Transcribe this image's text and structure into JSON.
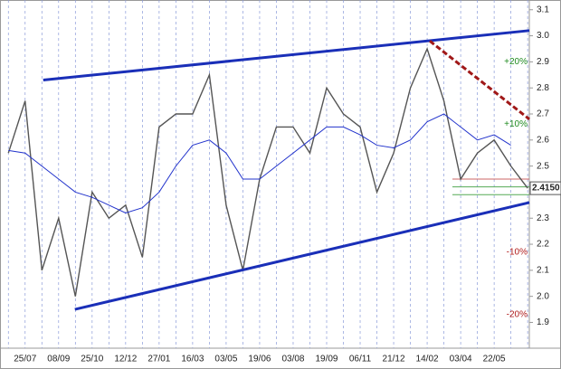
{
  "chart_data": {
    "type": "line",
    "categories": [
      null,
      "25/07",
      null,
      "08/09",
      null,
      "25/10",
      null,
      "12/12",
      null,
      "27/01",
      null,
      "16/03",
      null,
      "03/05",
      null,
      "19/06",
      null,
      "03/08",
      null,
      "19/09",
      null,
      "06/11",
      null,
      "21/12",
      null,
      "14/02",
      null,
      "03/04",
      null,
      "22/05",
      null,
      null
    ],
    "series": [
      {
        "color": "#555555",
        "values": [
          2.55,
          2.75,
          2.1,
          2.3,
          2.0,
          2.4,
          2.3,
          2.35,
          2.15,
          2.65,
          2.7,
          2.7,
          2.85,
          2.35,
          2.1,
          2.45,
          2.65,
          2.65,
          2.55,
          2.8,
          2.7,
          2.65,
          2.4,
          2.55,
          2.8,
          2.95,
          2.75,
          2.45,
          2.55,
          2.6,
          2.5,
          2.415
        ]
      },
      {
        "color": "#2233cc",
        "values": [
          2.56,
          2.55,
          2.5,
          2.45,
          2.4,
          2.38,
          2.35,
          2.32,
          2.34,
          2.4,
          2.5,
          2.58,
          2.6,
          2.55,
          2.45,
          2.45,
          2.5,
          2.55,
          2.6,
          2.65,
          2.65,
          2.62,
          2.58,
          2.57,
          2.6,
          2.67,
          2.7,
          2.65,
          2.6,
          2.62,
          2.58,
          null
        ]
      }
    ],
    "ylim": [
      1.86,
      3.12
    ],
    "yticks": [
      {
        "value": 1.9,
        "label": "1.9"
      },
      {
        "value": 2.0,
        "label": "2.0"
      },
      {
        "value": 2.1,
        "label": "2.1"
      },
      {
        "value": 2.2,
        "label": "2.2"
      },
      {
        "value": 2.3,
        "label": "2.3"
      },
      {
        "value": 2.4,
        "label": "2.4"
      },
      {
        "value": 2.5,
        "label": "2.5"
      },
      {
        "value": 2.6,
        "label": "2.6"
      },
      {
        "value": 2.7,
        "label": "2.7"
      },
      {
        "value": 2.8,
        "label": "2.8"
      },
      {
        "value": 2.9,
        "label": "2.9"
      },
      {
        "value": 3.0,
        "label": "3.0"
      },
      {
        "value": 3.1,
        "label": "3.1"
      }
    ],
    "trend_lines": [
      {
        "color": "#1a2fb8",
        "x": [
          2.08,
          31.1
        ],
        "y": [
          2.83,
          3.02
        ]
      },
      {
        "color": "#1a2fb8",
        "x": [
          3.97,
          31.1
        ],
        "y": [
          1.95,
          2.36
        ]
      },
      {
        "color": "#a01818",
        "x": [
          25.16,
          31.1
        ],
        "y": [
          2.98,
          2.68
        ],
        "dashed": true
      }
    ],
    "levels": [
      {
        "value": 2.45,
        "color": "#cc6666"
      },
      {
        "value": 2.42,
        "color": "#55aa55"
      },
      {
        "value": 2.39,
        "color": "#55aa55"
      }
    ],
    "percent_labels": [
      {
        "label": "+20%",
        "value": 2.9,
        "color": "#1f8a1f"
      },
      {
        "label": "+10%",
        "value": 2.66,
        "color": "#1f8a1f"
      },
      {
        "label": "-10%",
        "value": 2.17,
        "color": "#b01c1c"
      },
      {
        "label": "-20%",
        "value": 1.93,
        "color": "#b01c1c"
      }
    ],
    "last_price": {
      "value": 2.415,
      "label": "2.4150"
    }
  }
}
